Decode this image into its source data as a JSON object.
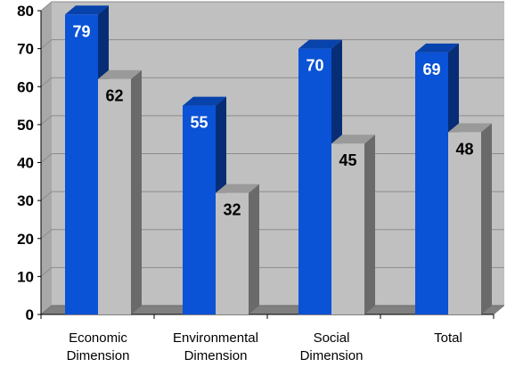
{
  "chart_data": {
    "type": "bar",
    "categories": [
      [
        "Economic",
        "Dimension"
      ],
      [
        "Environmental",
        "Dimension"
      ],
      [
        "Social",
        "Dimension"
      ],
      [
        "Total"
      ]
    ],
    "series": [
      {
        "values": [
          79,
          55,
          70,
          69
        ],
        "color": "#0a52d6",
        "label_color": "#ffffff"
      },
      {
        "values": [
          62,
          32,
          45,
          48
        ],
        "color": "#c0c0c0",
        "label_color": "#000000"
      }
    ],
    "ylim": [
      0,
      80
    ],
    "yticks": [
      0,
      10,
      20,
      30,
      40,
      50,
      60,
      70,
      80
    ],
    "grid": true,
    "style": "3d-bar",
    "plot_background": "#c0c0c0"
  }
}
